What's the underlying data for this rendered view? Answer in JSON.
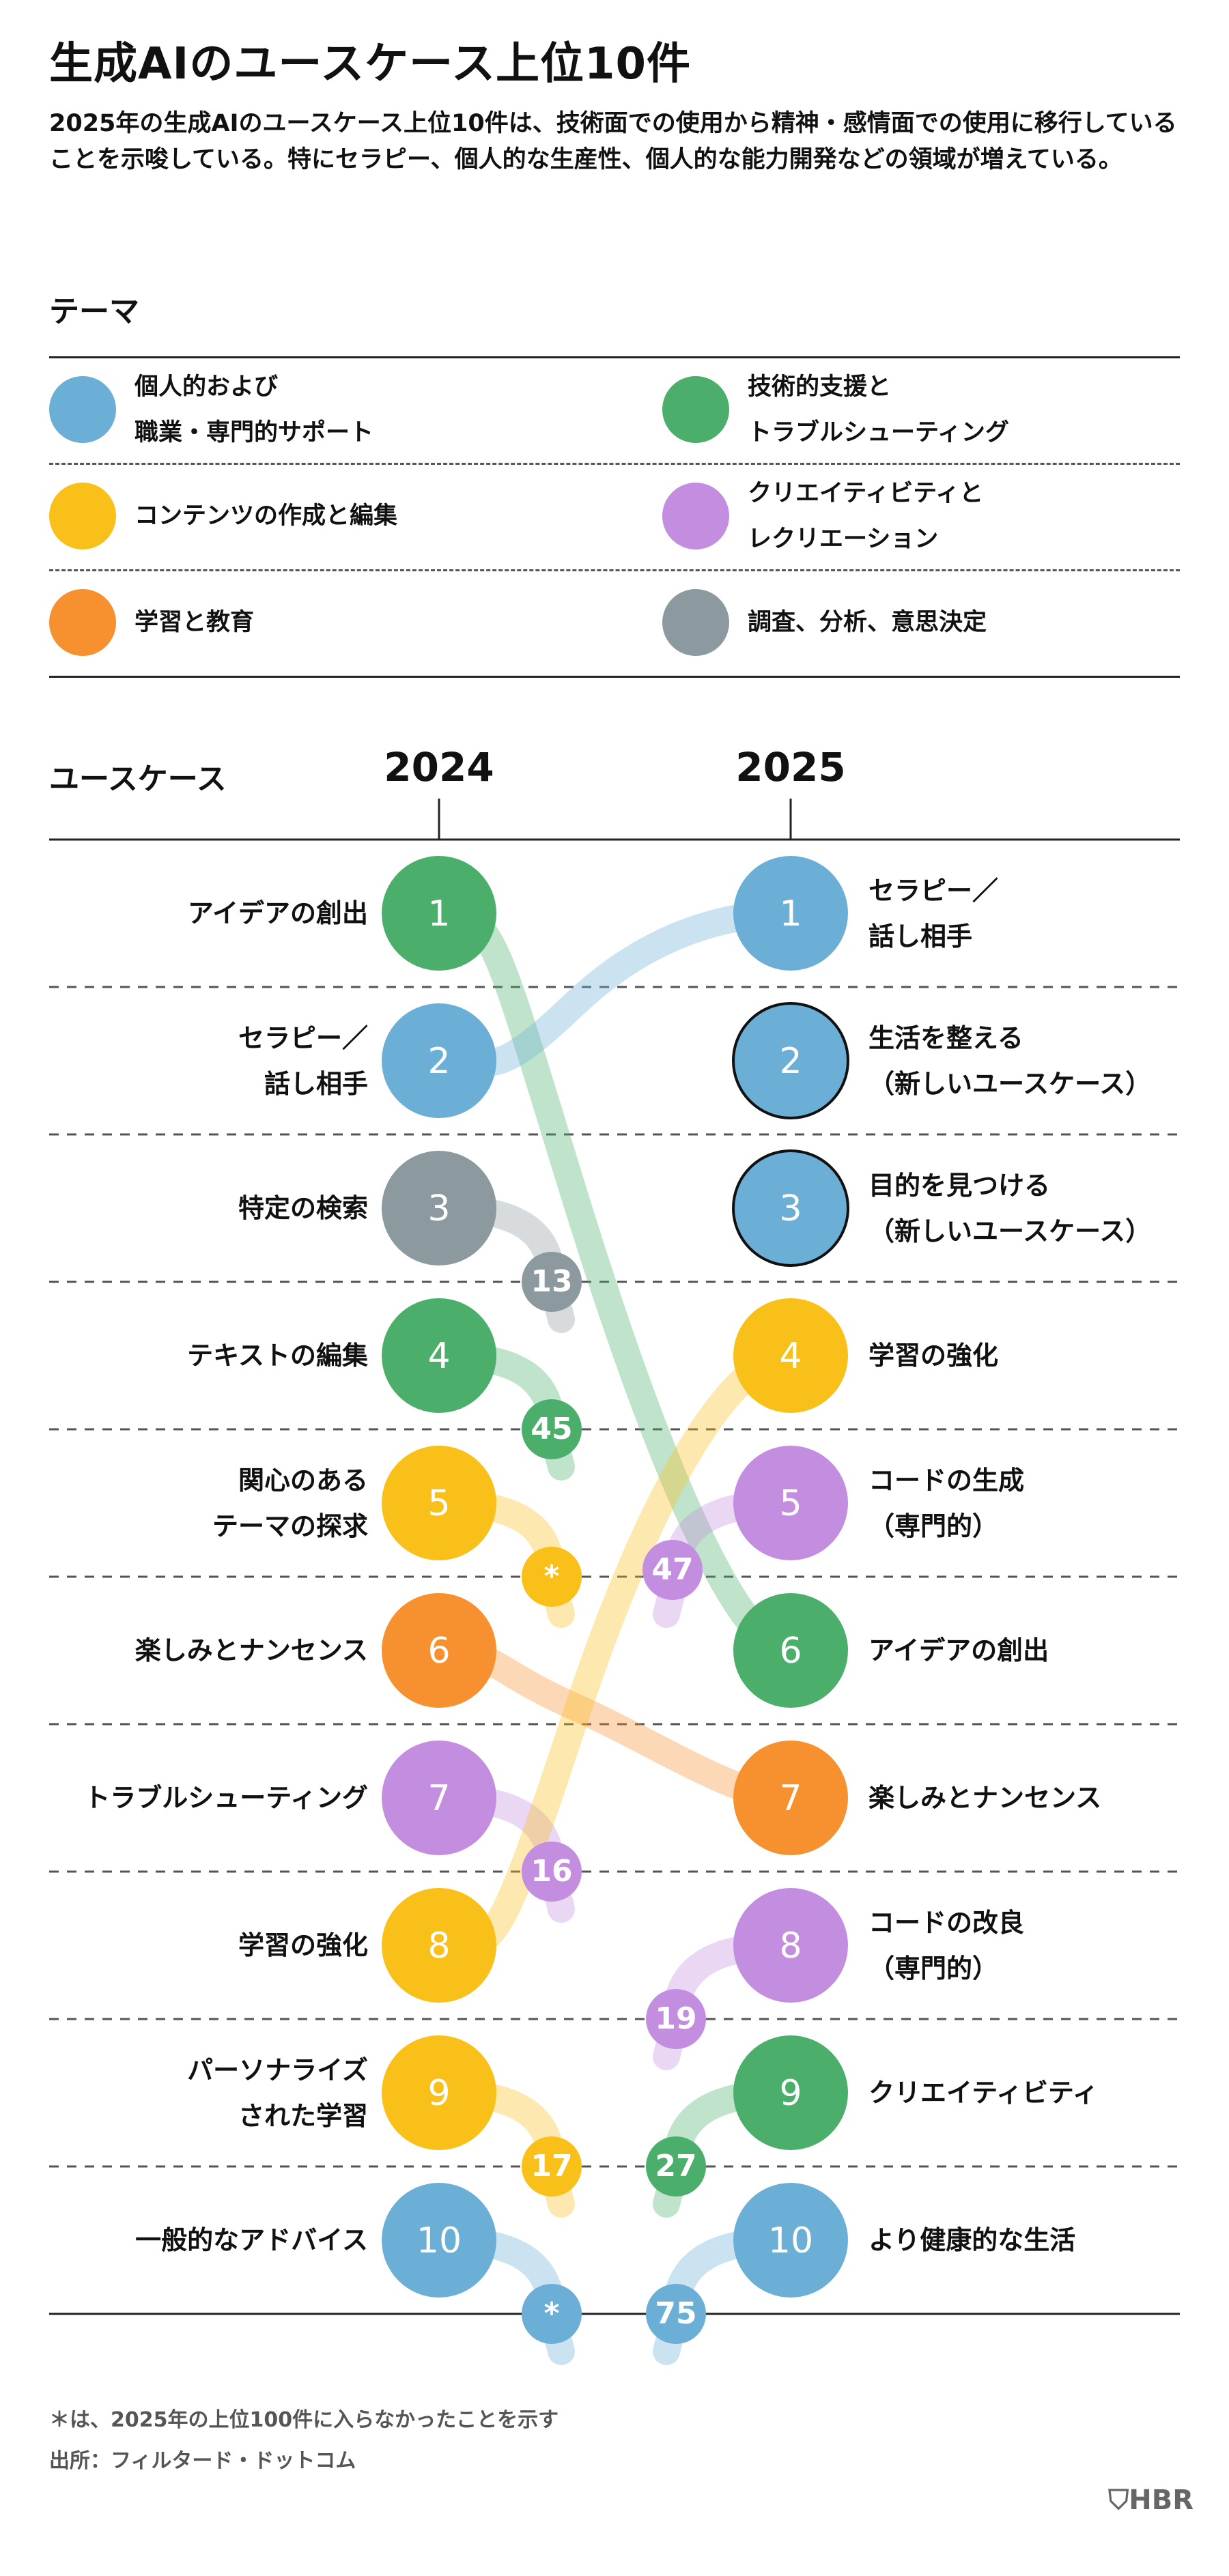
{
  "title": "生成AIのユースケース上位10件",
  "subtitle": "2025年の生成AIのユースケース上位10件は、技術面での使用から精神・感情面での使用に移行していることを示唆している。特にセラピー、個人的な生産性、個人的な能力開発などの領域が増えている。",
  "legend": {
    "heading": "テーマ",
    "items": [
      {
        "label": "個人的および\n職業・専門的サポート",
        "color": "#6BAED6"
      },
      {
        "label": "技術的支援と\nトラブルシューティング",
        "color": "#4BAE6A"
      },
      {
        "label": "コンテンツの作成と編集",
        "color": "#FAC01A"
      },
      {
        "label": "クリエイティビティと\nレクリエーション",
        "color": "#C38DE0"
      },
      {
        "label": "学習と教育",
        "color": "#F7902E"
      },
      {
        "label": "調査、分析、意思決定",
        "color": "#8C999F"
      }
    ]
  },
  "chart_data": {
    "type": "slopegraph",
    "section_label": "ユースケース",
    "years": [
      "2024",
      "2025"
    ],
    "left": [
      {
        "rank": "1",
        "label": "アイデアの創出",
        "theme": 1,
        "rank2025": "6"
      },
      {
        "rank": "2",
        "label": "セラピー／\n話し相手",
        "theme": 0,
        "rank2025": "1"
      },
      {
        "rank": "3",
        "label": "特定の検索",
        "theme": 5,
        "rank2025": "13"
      },
      {
        "rank": "4",
        "label": "テキストの編集",
        "theme": 1,
        "rank2025": "45"
      },
      {
        "rank": "5",
        "label": "関心のある\nテーマの探求",
        "theme": 2,
        "rank2025": "*"
      },
      {
        "rank": "6",
        "label": "楽しみとナンセンス",
        "theme": 4,
        "rank2025": "7"
      },
      {
        "rank": "7",
        "label": "トラブルシューティング",
        "theme": 3,
        "rank2025": "16"
      },
      {
        "rank": "8",
        "label": "学習の強化",
        "theme": 2,
        "rank2025": "4"
      },
      {
        "rank": "9",
        "label": "パーソナライズ\nされた学習",
        "theme": 2,
        "rank2025": "17"
      },
      {
        "rank": "10",
        "label": "一般的なアドバイス",
        "theme": 0,
        "rank2025": "*"
      }
    ],
    "right": [
      {
        "rank": "1",
        "label": "セラピー／\n話し相手",
        "theme": 0,
        "rank2024": "2",
        "new": false
      },
      {
        "rank": "2",
        "label": "生活を整える\n（新しいユースケース）",
        "theme": 0,
        "rank2024": "",
        "new": true
      },
      {
        "rank": "3",
        "label": "目的を見つける\n（新しいユースケース）",
        "theme": 0,
        "rank2024": "",
        "new": true
      },
      {
        "rank": "4",
        "label": "学習の強化",
        "theme": 2,
        "rank2024": "8",
        "new": false
      },
      {
        "rank": "5",
        "label": "コードの生成\n（専門的）",
        "theme": 3,
        "rank2024": "47",
        "new": false
      },
      {
        "rank": "6",
        "label": "アイデアの創出",
        "theme": 1,
        "rank2024": "1",
        "new": false
      },
      {
        "rank": "7",
        "label": "楽しみとナンセンス",
        "theme": 4,
        "rank2024": "6",
        "new": false
      },
      {
        "rank": "8",
        "label": "コードの改良\n（専門的）",
        "theme": 3,
        "rank2024": "19",
        "new": false
      },
      {
        "rank": "9",
        "label": "クリエイティビティ",
        "theme": 1,
        "rank2024": "27",
        "new": false
      },
      {
        "rank": "10",
        "label": "より健康的な生活",
        "theme": 0,
        "rank2024": "75",
        "new": false
      }
    ]
  },
  "footnote": "＊は、2025年の上位100件に入らなかったことを示す",
  "source": "出所：フィルタード・ドットコム",
  "brand": "HBR"
}
